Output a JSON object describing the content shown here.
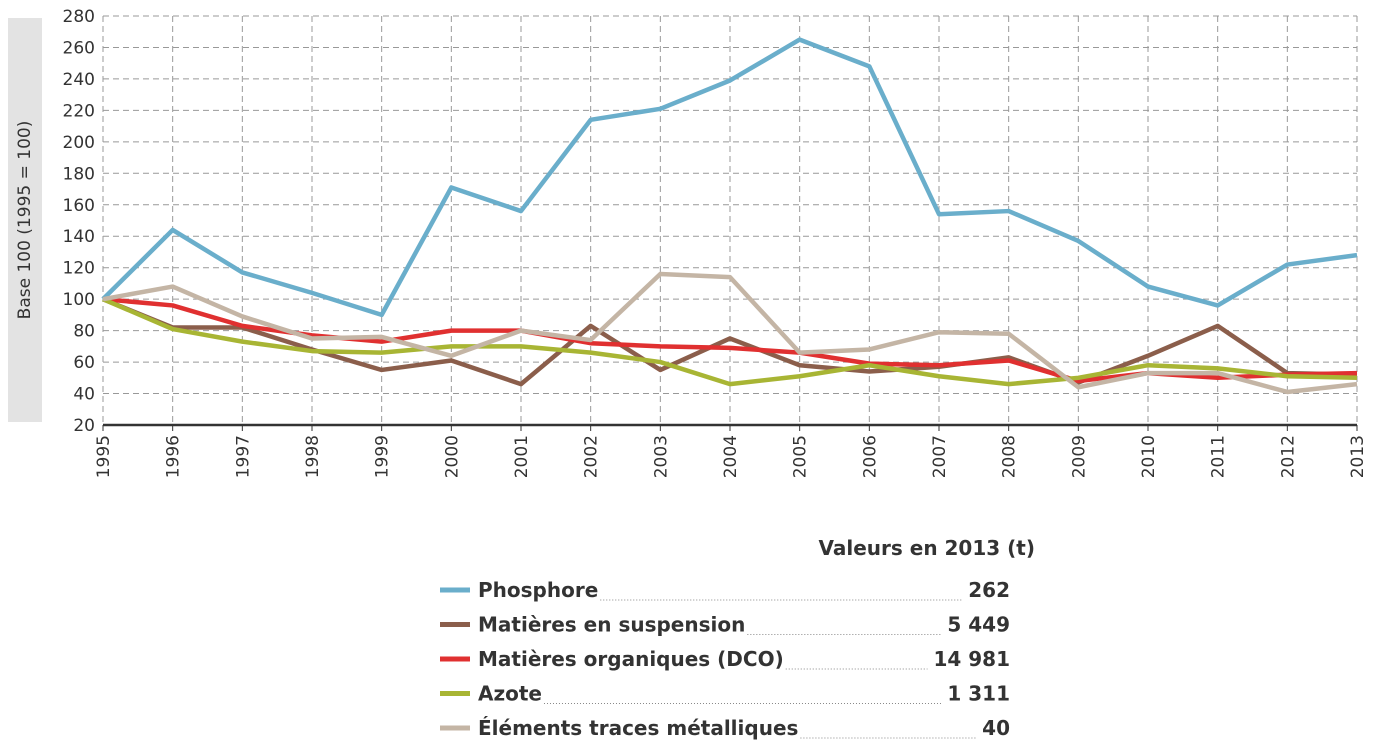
{
  "chart_data": {
    "type": "line",
    "y_label": "Base 100 (1995 = 100)",
    "categories": [
      "1995",
      "1996",
      "1997",
      "1998",
      "1999",
      "2000",
      "2001",
      "2002",
      "2003",
      "2004",
      "2005",
      "2006",
      "2007",
      "2008",
      "2009",
      "2010",
      "2011",
      "2012",
      "2013"
    ],
    "ylim": [
      20,
      280
    ],
    "yticks": [
      20,
      40,
      60,
      80,
      100,
      120,
      140,
      160,
      180,
      200,
      220,
      240,
      260,
      280
    ],
    "grid": true,
    "legend_title": "Valeurs en 2013 (t)",
    "series": [
      {
        "name": "Phosphore",
        "color": "#6aaecb",
        "total_2013": 262,
        "values": [
          100,
          144,
          117,
          104,
          90,
          171,
          156,
          214,
          221,
          239,
          265,
          248,
          154,
          156,
          137,
          108,
          96,
          122,
          128
        ]
      },
      {
        "name": "Matières en suspension",
        "color": "#8b5e4b",
        "total_2013": {
          "value": 5449,
          "label": "5 449"
        },
        "values": [
          100,
          82,
          82,
          68,
          55,
          61,
          46,
          83,
          55,
          75,
          58,
          54,
          57,
          63,
          47,
          64,
          83,
          53,
          52
        ]
      },
      {
        "name": "Matières organiques (DCO)",
        "color": "#e03030",
        "total_2013": {
          "value": 14981,
          "label": "14 981"
        },
        "values": [
          100,
          96,
          83,
          77,
          73,
          80,
          80,
          72,
          70,
          69,
          66,
          59,
          58,
          61,
          48,
          53,
          50,
          52,
          53
        ]
      },
      {
        "name": "Azote",
        "color": "#a8b534",
        "total_2013": {
          "value": 1311,
          "label": "1 311"
        },
        "values": [
          100,
          81,
          73,
          67,
          66,
          70,
          70,
          66,
          60,
          46,
          51,
          58,
          51,
          46,
          50,
          58,
          56,
          51,
          50
        ]
      },
      {
        "name": "Éléments traces métalliques",
        "color": "#c4b5a5",
        "total_2013": 40,
        "values": [
          100,
          108,
          89,
          75,
          76,
          64,
          80,
          74,
          116,
          114,
          66,
          68,
          79,
          78,
          44,
          53,
          53,
          41,
          46
        ]
      }
    ]
  }
}
